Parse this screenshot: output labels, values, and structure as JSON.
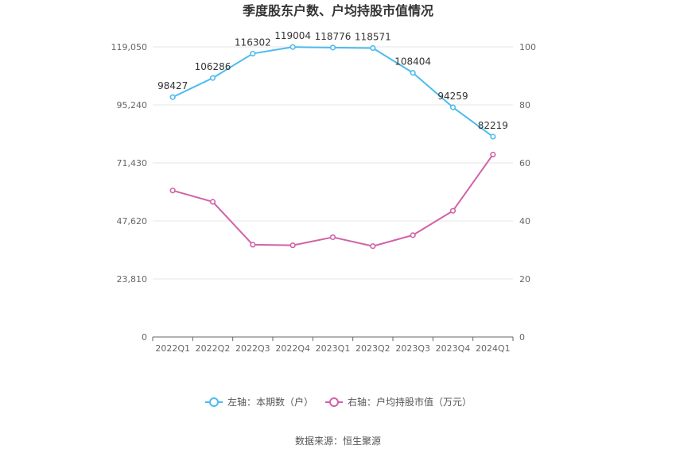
{
  "chart_data": {
    "type": "line",
    "title": "季度股东户数、户均持股市值情况",
    "categories": [
      "2022Q1",
      "2022Q2",
      "2022Q3",
      "2022Q4",
      "2023Q1",
      "2023Q2",
      "2023Q3",
      "2023Q4",
      "2024Q1"
    ],
    "left_axis": {
      "ticks": [
        "0",
        "23,810",
        "47,620",
        "71,430",
        "95,240",
        "119,050"
      ],
      "ylim": [
        0,
        119050
      ]
    },
    "right_axis": {
      "ticks": [
        "0",
        "20",
        "40",
        "60",
        "80",
        "100"
      ],
      "ylim": [
        0,
        100
      ]
    },
    "series": [
      {
        "name": "左轴：本期数（户）",
        "axis": "left",
        "color": "#4dbbee",
        "values": [
          98427,
          106286,
          116302,
          119004,
          118776,
          118571,
          108404,
          94259,
          82219
        ],
        "labels": [
          "98427",
          "106286",
          "116302",
          "119004",
          "118776",
          "118571",
          "108404",
          "94259",
          "82219"
        ]
      },
      {
        "name": "右轴：户均持股市值（万元）",
        "axis": "right",
        "color": "#d162a8",
        "values": [
          50.5,
          46.6,
          31.8,
          31.6,
          34.4,
          31.3,
          35.1,
          43.5,
          62.9
        ]
      }
    ],
    "grid": true,
    "legend_position": "bottom"
  },
  "source": "数据来源：恒生聚源"
}
